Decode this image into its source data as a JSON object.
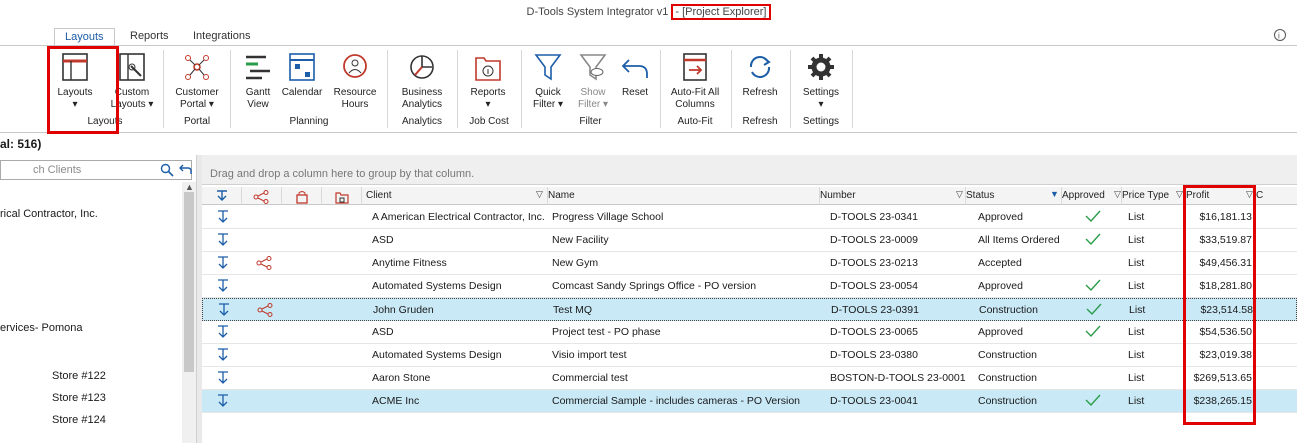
{
  "window": {
    "title_prefix": "D-Tools System Integrator v1",
    "title_highlight": "- [Project Explorer]"
  },
  "tabs": [
    {
      "label": "Layouts",
      "active": true
    },
    {
      "label": "Reports",
      "active": false
    },
    {
      "label": "Integrations",
      "active": false
    }
  ],
  "ribbon": {
    "buttons": {
      "layouts": "Layouts",
      "custom_layouts_1": "Custom",
      "custom_layouts_2": "Layouts ▾",
      "customer_portal_1": "Customer",
      "customer_portal_2": "Portal ▾",
      "gantt_1": "Gantt",
      "gantt_2": "View",
      "calendar": "Calendar",
      "resource_1": "Resource",
      "resource_2": "Hours",
      "bi_1": "Business",
      "bi_2": "Analytics",
      "reports": "Reports",
      "quick_filter_1": "Quick",
      "quick_filter_2": "Filter ▾",
      "show_filter_1": "Show",
      "show_filter_2": "Filter ▾",
      "reset": "Reset",
      "autofit_1": "Auto-Fit All",
      "autofit_2": "Columns",
      "refresh": "Refresh",
      "settings": "Settings"
    },
    "groups": {
      "layouts": "Layouts",
      "portal": "Portal",
      "planning": "Planning",
      "analytics": "Analytics",
      "job_cost": "Job Cost",
      "filter": "Filter",
      "autofit": "Auto-Fit",
      "refresh": "Refresh",
      "settings": "Settings"
    }
  },
  "left_panel": {
    "total_label": "al: 516)",
    "search_placeholder": "ch Clients",
    "items": [
      "rical Contractor, Inc.",
      "ervices- Pomona",
      "Store #122",
      "Store #123",
      "Store #124"
    ]
  },
  "grid": {
    "group_hint": "Drag and drop a column here to group by that column.",
    "columns": {
      "client": "Client",
      "name": "Name",
      "number": "Number",
      "status": "Status",
      "approved": "Approved",
      "price_type": "Price Type",
      "profit": "Profit",
      "extra": "C"
    },
    "rows": [
      {
        "client": "A American Electrical Contractor, Inc.",
        "name": "Progress Village School",
        "number": "D-TOOLS 23-0341",
        "status": "Approved",
        "approved": true,
        "price_type": "List",
        "profit": "$16,181.13",
        "share": false
      },
      {
        "client": "ASD",
        "name": "New Facility",
        "number": "D-TOOLS 23-0009",
        "status": "All Items Ordered",
        "approved": true,
        "price_type": "List",
        "profit": "$33,519.87",
        "share": false
      },
      {
        "client": "Anytime Fitness",
        "name": "New Gym",
        "number": "D-TOOLS 23-0213",
        "status": "Accepted",
        "approved": false,
        "price_type": "List",
        "profit": "$49,456.31",
        "share": true
      },
      {
        "client": "Automated Systems Design",
        "name": "Comcast Sandy Springs Office - PO version",
        "number": "D-TOOLS 23-0054",
        "status": "Approved",
        "approved": true,
        "price_type": "List",
        "profit": "$18,281.80",
        "share": false
      },
      {
        "client": "John Gruden",
        "name": "Test MQ",
        "number": "D-TOOLS 23-0391",
        "status": "Construction",
        "approved": true,
        "price_type": "List",
        "profit": "$23,514.58",
        "share": true
      },
      {
        "client": "ASD",
        "name": "Project test - PO phase",
        "number": "D-TOOLS 23-0065",
        "status": "Approved",
        "approved": true,
        "price_type": "List",
        "profit": "$54,536.50",
        "share": false
      },
      {
        "client": "Automated Systems Design",
        "name": "Visio import test",
        "number": "D-TOOLS 23-0380",
        "status": "Construction",
        "approved": false,
        "price_type": "List",
        "profit": "$23,019.38",
        "share": false
      },
      {
        "client": "Aaron Stone",
        "name": "Commercial test",
        "number": "BOSTON-D-TOOLS 23-0001",
        "status": "Construction",
        "approved": false,
        "price_type": "List",
        "profit": "$269,513.65",
        "share": false
      },
      {
        "client": "ACME Inc",
        "name": "Commercial Sample - includes cameras - PO Version",
        "number": "D-TOOLS 23-0041",
        "status": "Construction",
        "approved": true,
        "price_type": "List",
        "profit": "$238,265.15",
        "share": false
      }
    ]
  },
  "colors": {
    "accent": "#1c5ea8",
    "highlight": "#e00000",
    "selected_row": "#c9e9f6",
    "check": "#2a9d4a"
  }
}
